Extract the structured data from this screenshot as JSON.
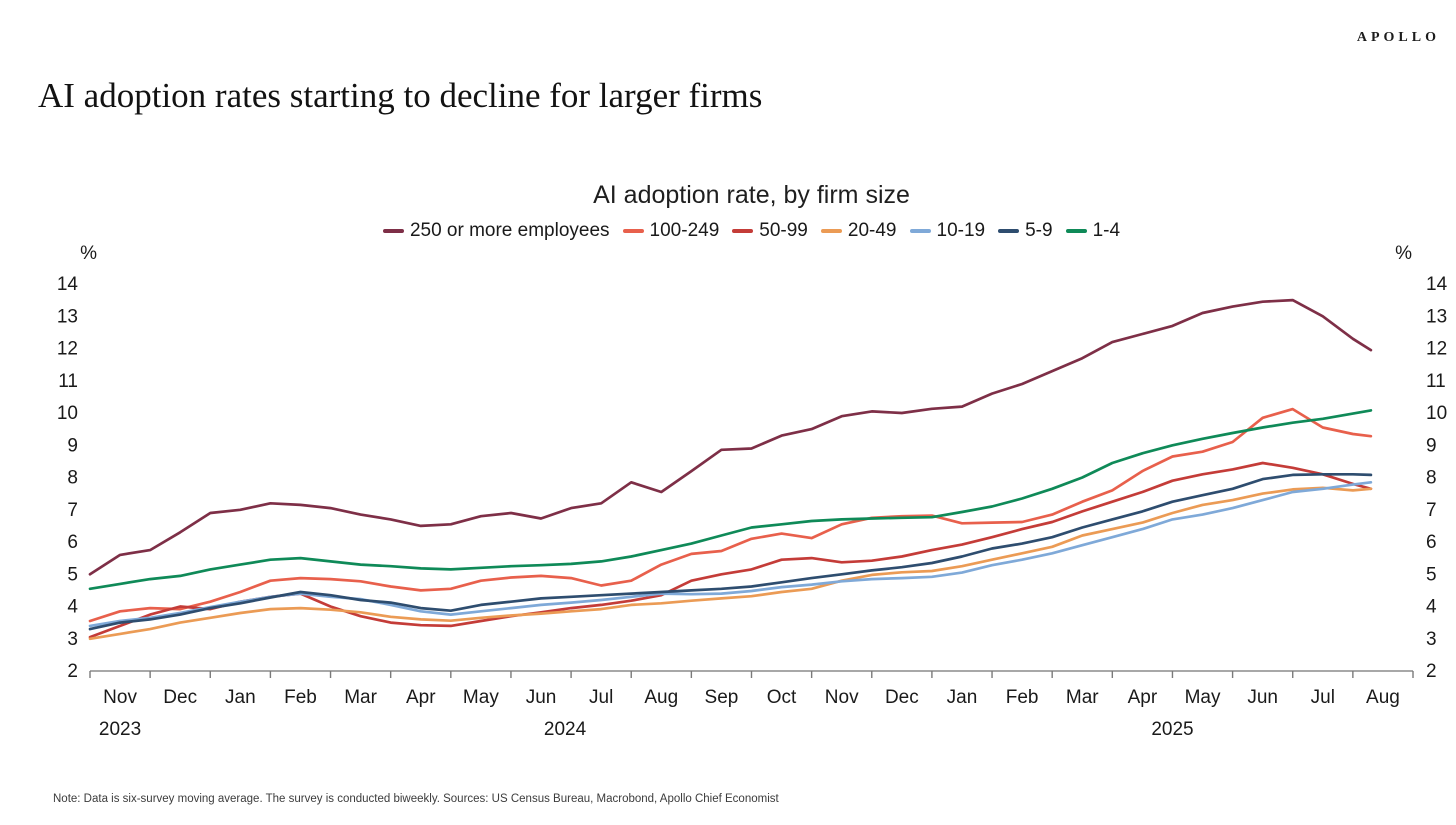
{
  "brand": "APOLLO",
  "page_title": "AI adoption rates starting to decline for larger firms",
  "note": "Note: Data is six-survey moving average. The survey is conducted biweekly. Sources: US Census Bureau, Macrobond, Apollo Chief Economist",
  "chart_data": {
    "type": "line",
    "title": "AI adoption rate, by firm size",
    "unit_label": "%",
    "y_axis": {
      "min": 2,
      "max": 14,
      "step": 1,
      "sides": "both",
      "grid": false
    },
    "x_axis": {
      "months": [
        "Nov",
        "Dec",
        "Jan",
        "Feb",
        "Mar",
        "Apr",
        "May",
        "Jun",
        "Jul",
        "Aug",
        "Sep",
        "Oct",
        "Nov",
        "Dec",
        "Jan",
        "Feb",
        "Mar",
        "Apr",
        "May",
        "Jun",
        "Jul",
        "Aug"
      ],
      "years": [
        {
          "label": "2023",
          "t": 0.5
        },
        {
          "label": "2024",
          "t": 7.9
        },
        {
          "label": "2025",
          "t": 18.0
        }
      ],
      "span_months": 22,
      "description": "Biweekly points, months since Nov 1 2023; x step 0.5 month"
    },
    "x_step_months": 0.5,
    "x_last_t": 21.3,
    "legend_position": "top-center",
    "series": [
      {
        "name": "250 or more employees",
        "color": "#7e2f47",
        "values": [
          5.0,
          5.6,
          5.75,
          6.3,
          6.9,
          7.0,
          7.2,
          7.15,
          7.05,
          6.85,
          6.7,
          6.5,
          6.55,
          6.8,
          6.9,
          6.73,
          7.05,
          7.2,
          7.85,
          7.55,
          8.2,
          8.86,
          8.9,
          9.3,
          9.5,
          9.9,
          10.05,
          10.0,
          10.13,
          10.2,
          10.6,
          10.9,
          11.3,
          11.7,
          12.2,
          12.45,
          12.7,
          13.1,
          13.3,
          13.45,
          13.5,
          13.0,
          12.3,
          11.95
        ]
      },
      {
        "name": "100-249",
        "color": "#e8604c",
        "values": [
          3.55,
          3.85,
          3.95,
          3.92,
          4.15,
          4.45,
          4.8,
          4.88,
          4.85,
          4.78,
          4.62,
          4.5,
          4.55,
          4.8,
          4.9,
          4.95,
          4.88,
          4.65,
          4.8,
          5.3,
          5.63,
          5.72,
          6.1,
          6.26,
          6.12,
          6.55,
          6.75,
          6.8,
          6.82,
          6.58,
          6.6,
          6.62,
          6.85,
          7.25,
          7.6,
          8.2,
          8.65,
          8.8,
          9.1,
          9.85,
          10.12,
          9.55,
          9.35,
          9.28
        ]
      },
      {
        "name": "50-99",
        "color": "#c43c38",
        "values": [
          3.05,
          3.4,
          3.75,
          4.0,
          3.92,
          4.15,
          4.3,
          4.4,
          4.0,
          3.7,
          3.5,
          3.42,
          3.4,
          3.55,
          3.7,
          3.82,
          3.95,
          4.05,
          4.18,
          4.35,
          4.8,
          5.0,
          5.15,
          5.45,
          5.5,
          5.37,
          5.42,
          5.55,
          5.75,
          5.92,
          6.15,
          6.4,
          6.62,
          6.95,
          7.25,
          7.55,
          7.9,
          8.1,
          8.25,
          8.45,
          8.3,
          8.1,
          7.8,
          7.65
        ]
      },
      {
        "name": "20-49",
        "color": "#eb9b55",
        "values": [
          3.0,
          3.15,
          3.3,
          3.5,
          3.65,
          3.8,
          3.92,
          3.95,
          3.9,
          3.82,
          3.68,
          3.6,
          3.56,
          3.65,
          3.72,
          3.78,
          3.85,
          3.92,
          4.05,
          4.1,
          4.18,
          4.25,
          4.32,
          4.45,
          4.55,
          4.8,
          4.98,
          5.06,
          5.1,
          5.25,
          5.45,
          5.65,
          5.85,
          6.2,
          6.4,
          6.6,
          6.9,
          7.15,
          7.3,
          7.5,
          7.63,
          7.68,
          7.6,
          7.65
        ]
      },
      {
        "name": "10-19",
        "color": "#7fa9d8",
        "values": [
          3.4,
          3.55,
          3.65,
          3.8,
          3.98,
          4.15,
          4.3,
          4.4,
          4.3,
          4.23,
          4.05,
          3.85,
          3.75,
          3.85,
          3.95,
          4.05,
          4.12,
          4.2,
          4.3,
          4.4,
          4.38,
          4.4,
          4.48,
          4.6,
          4.68,
          4.78,
          4.85,
          4.88,
          4.92,
          5.05,
          5.28,
          5.45,
          5.65,
          5.9,
          6.15,
          6.4,
          6.7,
          6.85,
          7.05,
          7.3,
          7.55,
          7.65,
          7.78,
          7.85
        ]
      },
      {
        "name": "5-9",
        "color": "#2e4d6f",
        "values": [
          3.3,
          3.5,
          3.6,
          3.75,
          3.95,
          4.1,
          4.28,
          4.45,
          4.35,
          4.2,
          4.12,
          3.95,
          3.87,
          4.05,
          4.15,
          4.25,
          4.3,
          4.35,
          4.4,
          4.45,
          4.5,
          4.55,
          4.62,
          4.75,
          4.88,
          5.0,
          5.12,
          5.22,
          5.35,
          5.55,
          5.8,
          5.95,
          6.15,
          6.45,
          6.7,
          6.95,
          7.25,
          7.45,
          7.65,
          7.95,
          8.08,
          8.1,
          8.1,
          8.08
        ]
      },
      {
        "name": "1-4",
        "color": "#0f8a58",
        "values": [
          4.55,
          4.7,
          4.85,
          4.95,
          5.15,
          5.3,
          5.45,
          5.5,
          5.4,
          5.3,
          5.25,
          5.18,
          5.15,
          5.2,
          5.25,
          5.28,
          5.32,
          5.4,
          5.55,
          5.75,
          5.95,
          6.2,
          6.45,
          6.55,
          6.65,
          6.7,
          6.73,
          6.75,
          6.77,
          6.93,
          7.1,
          7.35,
          7.65,
          8.0,
          8.45,
          8.75,
          9.0,
          9.2,
          9.38,
          9.55,
          9.7,
          9.82,
          9.98,
          10.08
        ]
      }
    ]
  }
}
